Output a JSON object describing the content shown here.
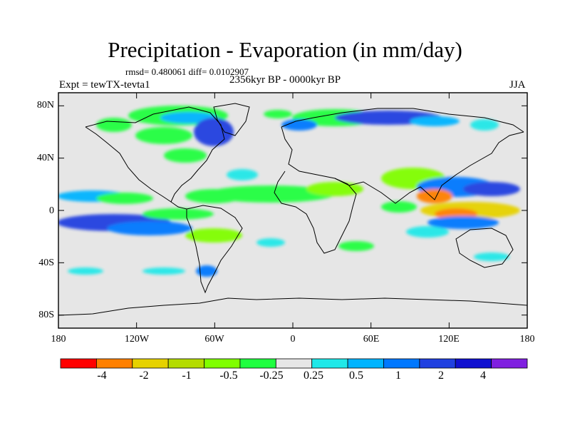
{
  "title": "Precipitation - Evaporation (in mm/day)",
  "stats": "rmsd= 0.480061 diff= 0.0102907",
  "period": "2356kyr BP - 0000kyr BP",
  "expt": "Expt = tewTX-tevta1",
  "season": "JJA",
  "map": {
    "background_color": "#e6e6e6",
    "lat_labels": [
      "80N",
      "40N",
      "0",
      "40S",
      "80S"
    ],
    "lon_labels": [
      "180",
      "120W",
      "60W",
      "0",
      "60E",
      "120E",
      "180"
    ]
  },
  "colorbar": {
    "colors": [
      "#ff0000",
      "#ff8000",
      "#e6d200",
      "#b4dc00",
      "#80ff00",
      "#20ff40",
      "#e6e6e6",
      "#20e8e8",
      "#00b4ff",
      "#0078ff",
      "#2040e0",
      "#1010d0",
      "#8020e0"
    ],
    "labels": [
      "-4",
      "-2",
      "-1",
      "-0.5",
      "-0.25",
      "0.25",
      "0.5",
      "1",
      "2",
      "4"
    ]
  }
}
